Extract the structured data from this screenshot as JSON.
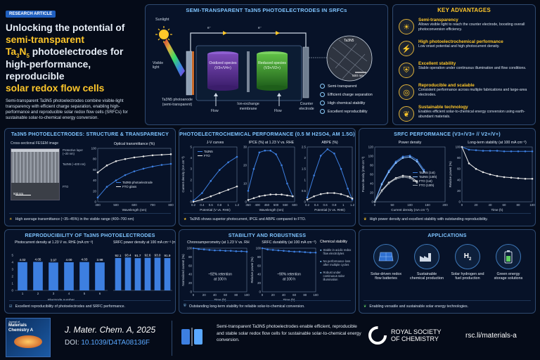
{
  "header": {
    "badge": "RESEARCH ARTICLE",
    "title_line1": "Unlocking the potential of",
    "title_line2": "semi-transparent",
    "title_line3a": "Ta",
    "title_line3b": "3",
    "title_line3c": "N",
    "title_line3d": "5",
    "title_line3e": " photoelectrodes for",
    "title_line4": "high-performance, reproducible",
    "title_line5": "solar redox flow cells",
    "summary": "Semi-transparent Ta3N5 photoelectrodes combine visible-light transparency with efficient charge separation, enabling high-performance and reproducible solar redox flow cells (SRFCs) for sustainable solar-to-chemical energy conversion."
  },
  "schematic": {
    "title": "SEMI-TRANSPARENT Ta3N5 PHOTOELECTRODES IN SRFCs",
    "sunlight": "Sunlight",
    "visible_light": "Visible light",
    "photoanode": "Ta3N5 photoanode (semi-transparent)",
    "oxidized": "Oxidized species (V3+/V4+)",
    "reduced": "Reduced species (V3+/V2+)",
    "membrane": "Ion-exchange membrane",
    "counter": "Counter electrode",
    "flow1": "Flow",
    "flow2": "Flow",
    "electron": "e⁻",
    "sem_label": "Ta3N5",
    "scale": "500 nm",
    "bullets": [
      "Semi-transparent",
      "Efficient charge separation",
      "High chemical stability",
      "Excellent reproducibility"
    ]
  },
  "advantages": {
    "title": "KEY ADVANTAGES",
    "items": [
      {
        "title": "Semi-transparency",
        "text": "Allows visible light to reach the counter electrode, boosting overall photoconversion efficiency.",
        "icon": "sun-icon"
      },
      {
        "title": "High photoelectrochemical performance",
        "text": "Low onset potential and high photocurrent density.",
        "icon": "lightning-icon"
      },
      {
        "title": "Excellent stability",
        "text": "Stable operation under continuous illumination and flow conditions.",
        "icon": "shield-icon"
      },
      {
        "title": "Reproducible and scalable",
        "text": "Consistent performance across multiple fabrications and large-area electrodes.",
        "icon": "target-icon"
      },
      {
        "title": "Sustainable technology",
        "text": "Enables efficient solar-to-chemical energy conversion using earth-abundant materials.",
        "icon": "leaf-icon"
      }
    ]
  },
  "structure": {
    "title": "Ta3N5 PHOTOELECTRODES: STRUCTURE & TRANSPARENCY",
    "fesem": "Cross-sectional FESEM image",
    "protective": "Protective layer (~20 nm)",
    "ta3n5": "Ta3N5 (~400 nm)",
    "fto": "FTO",
    "scale": "500 nm",
    "caption": "High average transmittance (~35–45%) in the visible range (400–700 nm)"
  },
  "pec": {
    "title": "PHOTOELECTROCHEMICAL PERFORMANCE (0.5 M H2SO4, AM 1.5G)",
    "caption": "Ta3N5 shows superior photocurrent, IPCE and ABPE compared to FTO."
  },
  "srfc": {
    "title": "SRFC PERFORMANCE (V3+/V3+ // V2+/V+)",
    "caption": "High power density and excellent stability with outstanding reproducibility."
  },
  "repro": {
    "title": "REPRODUCIBILITY OF Ta3N5 PHOTOELECTRODES",
    "caption": "Excellent reproducibility of photoelectrodes and SRFC performance."
  },
  "stability": {
    "title": "STABILITY AND ROBUSTNESS",
    "chem_title": "Chemical stability",
    "chem_items": [
      "Stable in acidic redox flow electrolytes",
      "No performance loss after multiple cycles",
      "Robust under continuous solar illumination"
    ],
    "caption": "Outstanding long-term stability for reliable solar-to-chemical conversion."
  },
  "applications": {
    "title": "APPLICATIONS",
    "items": [
      {
        "label": "Solar-driven redox flow batteries",
        "icon": "solar-panel-icon"
      },
      {
        "label": "Sustainable chemical production",
        "icon": "factory-icon"
      },
      {
        "label": "Solar hydrogen and fuel production",
        "icon": "h2-icon"
      },
      {
        "label": "Green energy storage solutions",
        "icon": "battery-icon"
      }
    ],
    "caption": "Enabling versatile and sustainable solar energy technologies."
  },
  "footer": {
    "journal_cover_small": "Journal of",
    "journal_cover_big": "Materials Chemistry A",
    "journal": "J. Mater. Chem. A, 2025",
    "doi_label": "DOI: ",
    "doi": "10.1039/D4TA08136F",
    "summary": "Semi-transparent Ta3N5 photoelectrodes enable efficient, reproducible and stable solar redox flow cells for sustainable solar-to-chemical energy conversion.",
    "rsc_line1": "ROYAL SOCIETY",
    "rsc_line2": "OF CHEMISTRY",
    "link": "rsc.li/materials-a"
  },
  "colors": {
    "accent_yellow": "#ffc72a",
    "accent_blue": "#7fc4ff",
    "series_blue": "#3d7fe0",
    "series_white": "#e8e8e8"
  },
  "chart_data": [
    {
      "type": "line",
      "title": "Optical transmittance (%)",
      "xlabel": "Wavelength (nm)",
      "ylabel": "",
      "xlim": [
        400,
        800
      ],
      "ylim": [
        0,
        100
      ],
      "x_ticks": [
        400,
        500,
        600,
        700,
        800
      ],
      "y_ticks": [
        0,
        20,
        40,
        60,
        80,
        100
      ],
      "series": [
        {
          "name": "Ta3N5 photoelectrode",
          "color": "#3d7fe0",
          "x": [
            400,
            450,
            500,
            550,
            600,
            650,
            700,
            750,
            800
          ],
          "values": [
            8,
            28,
            40,
            50,
            57,
            62,
            66,
            69,
            71
          ]
        },
        {
          "name": "FTO glass",
          "color": "#e8e8e8",
          "x": [
            400,
            450,
            500,
            550,
            600,
            650,
            700,
            750,
            800
          ],
          "values": [
            55,
            68,
            76,
            80,
            83,
            85,
            87,
            88,
            89
          ]
        }
      ]
    },
    {
      "type": "line",
      "title": "J-V curves",
      "xlabel": "Potential (V vs. RHE)",
      "ylabel": "Current density (mA cm⁻²)",
      "xlim": [
        0.2,
        1.2
      ],
      "ylim": [
        0,
        5
      ],
      "x_ticks": [
        0.2,
        0.4,
        0.6,
        0.8,
        1.0,
        1.2
      ],
      "y_ticks": [
        0,
        1,
        2,
        3,
        4,
        5
      ],
      "series": [
        {
          "name": "Ta3N5",
          "color": "#3d7fe0",
          "x": [
            0.2,
            0.4,
            0.6,
            0.8,
            1.0,
            1.2
          ],
          "values": [
            0.1,
            0.8,
            1.9,
            2.9,
            3.6,
            4.1
          ]
        },
        {
          "name": "FTO",
          "color": "#e8e8e8",
          "x": [
            0.2,
            0.4,
            0.6,
            0.8,
            1.0,
            1.2
          ],
          "values": [
            0.0,
            0.2,
            0.5,
            0.8,
            1.1,
            1.4
          ]
        }
      ]
    },
    {
      "type": "line",
      "title": "IPCE (%) at 1.23 V vs. RHE",
      "xlabel": "Wavelength (nm)",
      "ylabel": "",
      "xlim": [
        350,
        600
      ],
      "ylim": [
        0,
        30
      ],
      "x_ticks": [
        350,
        400,
        450,
        500,
        550,
        600
      ],
      "y_ticks": [
        0,
        10,
        20,
        30
      ],
      "series": [
        {
          "name": "Ta3N5",
          "color": "#3d7fe0",
          "x": [
            350,
            380,
            410,
            440,
            470,
            500,
            530,
            560,
            590
          ],
          "values": [
            6,
            18,
            27,
            28,
            28,
            26,
            20,
            10,
            3
          ]
        },
        {
          "name": "FTO",
          "color": "#e8e8e8",
          "x": [
            350,
            380,
            410,
            440,
            470,
            500,
            530,
            560,
            590
          ],
          "values": [
            1,
            2,
            3,
            3.5,
            4,
            4,
            4,
            3.5,
            3
          ]
        }
      ]
    },
    {
      "type": "line",
      "title": "ABPE (%)",
      "xlabel": "Potential (V vs. RHE)",
      "ylabel": "",
      "xlim": [
        0.2,
        1.2
      ],
      "ylim": [
        0,
        2.5
      ],
      "x_ticks": [
        0.2,
        0.4,
        0.6,
        0.8,
        1.0,
        1.2
      ],
      "y_ticks": [
        0,
        0.5,
        1.0,
        1.5,
        2.0,
        2.5
      ],
      "series": [
        {
          "name": "Ta3N5",
          "color": "#3d7fe0",
          "x": [
            0.2,
            0.35,
            0.5,
            0.65,
            0.8,
            0.95,
            1.1,
            1.2
          ],
          "values": [
            0.2,
            1.2,
            2.1,
            2.4,
            2.2,
            1.5,
            0.6,
            0.1
          ]
        },
        {
          "name": "FTO",
          "color": "#e8e8e8",
          "x": [
            0.2,
            0.35,
            0.5,
            0.65,
            0.8,
            0.95,
            1.1,
            1.2
          ],
          "values": [
            0.1,
            0.25,
            0.35,
            0.4,
            0.4,
            0.35,
            0.25,
            0.15
          ]
        }
      ]
    },
    {
      "type": "line",
      "title": "Power density",
      "xlabel": "Current density (mA cm⁻²)",
      "ylabel": "Power density (mW cm⁻²)",
      "xlim": [
        0,
        200
      ],
      "ylim": [
        0,
        120
      ],
      "x_ticks": [
        0,
        50,
        100,
        150,
        200
      ],
      "y_ticks": [
        0,
        20,
        40,
        60,
        80,
        100,
        120
      ],
      "series": [
        {
          "name": "Ta3N5 (1st)",
          "color": "#3d7fe0",
          "x": [
            0,
            20,
            40,
            60,
            80,
            100,
            120,
            140
          ],
          "values": [
            0,
            40,
            68,
            88,
            99,
            101,
            92,
            70
          ]
        },
        {
          "name": "Ta3N5 (10th)",
          "color": "#8fc2ff",
          "x": [
            0,
            20,
            40,
            60,
            80,
            100,
            120,
            140
          ],
          "values": [
            0,
            38,
            65,
            85,
            96,
            98,
            88,
            66
          ]
        },
        {
          "name": "FTO (1st)",
          "color": "#e8e8e8",
          "x": [
            0,
            20,
            40,
            60,
            80,
            100,
            120
          ],
          "values": [
            0,
            25,
            42,
            52,
            57,
            55,
            45
          ]
        },
        {
          "name": "FTO (10th)",
          "color": "#9aa3ad",
          "x": [
            0,
            20,
            40,
            60,
            80,
            100,
            120
          ],
          "values": [
            0,
            23,
            40,
            50,
            54,
            52,
            42
          ]
        }
      ]
    },
    {
      "type": "line",
      "title": "Long-term stability (at 100 mA cm⁻²)",
      "xlabel": "Time (h)",
      "ylabel": "Relative power (%)",
      "xlim": [
        0,
        100
      ],
      "ylim": [
        0,
        100
      ],
      "x_ticks": [
        0,
        20,
        40,
        60,
        80,
        100
      ],
      "y_ticks": [
        0,
        20,
        40,
        60,
        80,
        100
      ],
      "series": [
        {
          "name": "Ta3N5",
          "color": "#3d7fe0",
          "x": [
            0,
            10,
            20,
            30,
            40,
            50,
            60,
            70,
            80,
            90,
            100
          ],
          "values": [
            100,
            95,
            94,
            93,
            93,
            93,
            92,
            92,
            92,
            92,
            92
          ]
        },
        {
          "name": "FTO",
          "color": "#e8e8e8",
          "x": [
            0,
            10,
            20,
            30,
            40,
            50,
            60,
            70,
            80,
            90,
            100
          ],
          "values": [
            100,
            70,
            60,
            54,
            50,
            47,
            45,
            44,
            43,
            42,
            42
          ]
        }
      ]
    },
    {
      "type": "bar",
      "title": "Photocurrent density at 1.23 V vs. RHE (mA cm⁻²)",
      "xlabel": "Electrode number",
      "ylabel": "",
      "categories": [
        "1",
        "2",
        "3",
        "4",
        "5",
        "6"
      ],
      "values": [
        4.02,
        4.05,
        3.97,
        4.0,
        4.03,
        3.98
      ],
      "ylim": [
        0,
        5
      ],
      "y_ticks": [
        0,
        1,
        2,
        3,
        4,
        5
      ]
    },
    {
      "type": "bar",
      "title": "SRFC power density at 100 mA cm⁻² (mW cm⁻²)",
      "xlabel": "",
      "ylabel": "",
      "categories": [
        "1",
        "2",
        "3",
        "4",
        "5",
        "6"
      ],
      "values": [
        92.1,
        93.4,
        91.7,
        92.6,
        93.0,
        91.9
      ],
      "ylim": [
        0,
        100
      ],
      "y_ticks": []
    },
    {
      "type": "line",
      "title": "Chronoamperometry (at 1.23 V vs. RHE)",
      "xlabel": "Time (h)",
      "ylabel": "Normalized current (%)",
      "xlim": [
        0,
        100
      ],
      "ylim": [
        0,
        100
      ],
      "x_ticks": [
        0,
        20,
        40,
        60,
        80,
        100
      ],
      "y_ticks": [
        0,
        20,
        40,
        60,
        80,
        100
      ],
      "annotation": "~92% retention at 100 h",
      "series": [
        {
          "name": "Ta3N5",
          "color": "#3d7fe0",
          "x": [
            0,
            10,
            20,
            30,
            40,
            50,
            60,
            70,
            80,
            90,
            100
          ],
          "values": [
            100,
            98,
            97,
            96,
            95,
            95,
            94,
            94,
            93,
            93,
            92
          ]
        }
      ]
    },
    {
      "type": "line",
      "title": "SRFC durability (at 100 mA cm⁻²)",
      "xlabel": "Time (h)",
      "ylabel": "Relative power (%)",
      "xlim": [
        0,
        100
      ],
      "ylim": [
        0,
        100
      ],
      "x_ticks": [
        0,
        20,
        40,
        60,
        80,
        100
      ],
      "y_ticks": [
        0,
        20,
        40,
        60,
        80,
        100
      ],
      "annotation": "~90% retention at 100 h",
      "series": [
        {
          "name": "Ta3N5",
          "color": "#3d7fe0",
          "x": [
            0,
            10,
            20,
            30,
            40,
            50,
            60,
            70,
            80,
            90,
            100
          ],
          "values": [
            100,
            97,
            96,
            95,
            94,
            93,
            92,
            92,
            91,
            90,
            90
          ]
        }
      ]
    }
  ]
}
